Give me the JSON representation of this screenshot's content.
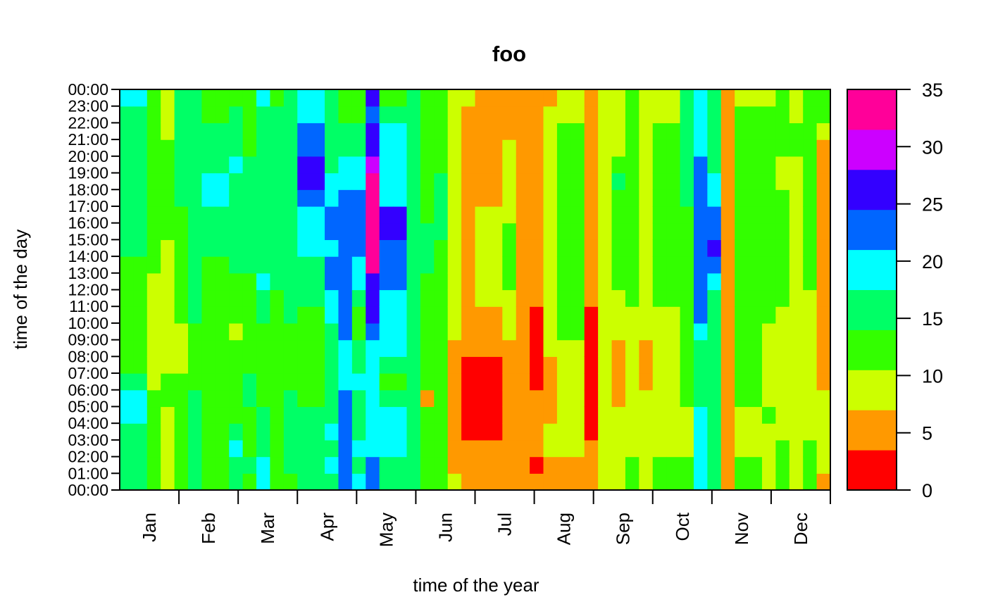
{
  "chart_data": {
    "type": "heatmap",
    "title": "foo",
    "xlabel": "time of the year",
    "ylabel": "time of the day",
    "x_tick_labels": [
      "Jan",
      "Feb",
      "Mar",
      "Apr",
      "May",
      "Jun",
      "Jul",
      "Aug",
      "Sep",
      "Oct",
      "Nov",
      "Dec"
    ],
    "y_tick_labels": [
      "00:00",
      "01:00",
      "02:00",
      "03:00",
      "04:00",
      "05:00",
      "06:00",
      "07:00",
      "08:00",
      "09:00",
      "10:00",
      "11:00",
      "12:00",
      "13:00",
      "14:00",
      "15:00",
      "16:00",
      "17:00",
      "18:00",
      "19:00",
      "20:00",
      "21:00",
      "22:00",
      "23:00",
      "00:00"
    ],
    "colorbar": {
      "breaks": [
        0,
        5,
        10,
        15,
        20,
        25,
        30,
        35
      ],
      "tick_labels": [
        "0",
        "5",
        "10",
        "15",
        "20",
        "25",
        "30",
        "35"
      ],
      "colors": [
        "#FF0000",
        "#FF9900",
        "#CCFF00",
        "#33FF00",
        "#00FF66",
        "#00FFFF",
        "#0066FF",
        "#3300FF",
        "#CC00FF",
        "#FF0099"
      ]
    },
    "column_keyframes": [
      {
        "i": 0,
        "levels": [
          4,
          4,
          4,
          4,
          5,
          5,
          4,
          3,
          3,
          3,
          3,
          3,
          3,
          3,
          4,
          4,
          4,
          4,
          4,
          4,
          4,
          4,
          4,
          5
        ]
      },
      {
        "i": 1,
        "levels": [
          3,
          3,
          3,
          3,
          3,
          3,
          2,
          2,
          2,
          2,
          2,
          2,
          2,
          3,
          3,
          3,
          3,
          3,
          3,
          3,
          3,
          3,
          3,
          3
        ]
      },
      {
        "i": 2,
        "levels": [
          2,
          2,
          2,
          2,
          2,
          3,
          3,
          2,
          2,
          2,
          2,
          2,
          2,
          2,
          2,
          3,
          3,
          3,
          3,
          3,
          3,
          2,
          2,
          2
        ]
      },
      {
        "i": 3,
        "levels": [
          3,
          3,
          3,
          3,
          3,
          3,
          3,
          2,
          2,
          2,
          3,
          3,
          3,
          3,
          3,
          3,
          3,
          4,
          4,
          4,
          4,
          4,
          4,
          4
        ]
      },
      {
        "i": 4,
        "levels": [
          4,
          4,
          4,
          4,
          4,
          4,
          3,
          3,
          3,
          3,
          4,
          4,
          4,
          4,
          4,
          4,
          4,
          4,
          4,
          4,
          4,
          4,
          4,
          4
        ]
      },
      {
        "i": 5,
        "levels": [
          3,
          3,
          3,
          3,
          3,
          3,
          3,
          3,
          3,
          3,
          3,
          3,
          3,
          3,
          4,
          4,
          4,
          5,
          5,
          4,
          4,
          4,
          3,
          3
        ]
      },
      {
        "i": 6,
        "levels": [
          4,
          4,
          5,
          4,
          3,
          3,
          3,
          3,
          3,
          2,
          3,
          3,
          3,
          4,
          4,
          4,
          4,
          4,
          4,
          5,
          4,
          4,
          4,
          3
        ]
      },
      {
        "i": 7,
        "levels": [
          3,
          4,
          3,
          3,
          3,
          4,
          4,
          3,
          3,
          3,
          3,
          3,
          3,
          4,
          4,
          4,
          4,
          4,
          4,
          4,
          3,
          3,
          3,
          3
        ]
      },
      {
        "i": 8,
        "levels": [
          5,
          5,
          4,
          4,
          4,
          3,
          3,
          3,
          3,
          3,
          4,
          4,
          5,
          4,
          4,
          4,
          4,
          4,
          4,
          4,
          4,
          4,
          4,
          5
        ]
      },
      {
        "i": 9,
        "levels": [
          3,
          3,
          3,
          3,
          3,
          3,
          3,
          3,
          3,
          3,
          3,
          3,
          4,
          4,
          4,
          4,
          4,
          4,
          4,
          4,
          4,
          4,
          4,
          3
        ]
      },
      {
        "i": 10,
        "levels": [
          3,
          4,
          4,
          4,
          4,
          4,
          3,
          3,
          3,
          3,
          4,
          4,
          4,
          4,
          4,
          4,
          4,
          4,
          4,
          4,
          4,
          4,
          4,
          4
        ]
      },
      {
        "i": 11,
        "levels": [
          4,
          4,
          4,
          4,
          4,
          3,
          3,
          3,
          3,
          3,
          3,
          4,
          4,
          4,
          5,
          5,
          5,
          6,
          7,
          7,
          6,
          6,
          5,
          5
        ]
      },
      {
        "i": 12,
        "levels": [
          4,
          5,
          4,
          5,
          4,
          4,
          4,
          4,
          4,
          4,
          5,
          5,
          6,
          6,
          5,
          6,
          6,
          5,
          5,
          4,
          4,
          4,
          4,
          4
        ]
      },
      {
        "i": 13,
        "levels": [
          6,
          6,
          6,
          6,
          6,
          6,
          5,
          5,
          5,
          6,
          6,
          6,
          6,
          6,
          6,
          6,
          6,
          6,
          5,
          5,
          4,
          4,
          3,
          3
        ]
      },
      {
        "i": 14,
        "levels": [
          5,
          4,
          5,
          4,
          4,
          4,
          5,
          4,
          4,
          3,
          3,
          4,
          5,
          5,
          6,
          6,
          6,
          6,
          5,
          5,
          4,
          4,
          3,
          3
        ]
      },
      {
        "i": 15,
        "levels": [
          6,
          6,
          5,
          5,
          5,
          5,
          5,
          5,
          5,
          6,
          7,
          7,
          7,
          9,
          9,
          9,
          9,
          9,
          9,
          8,
          7,
          7,
          6,
          7
        ]
      },
      {
        "i": 16,
        "levels": [
          4,
          4,
          5,
          5,
          5,
          4,
          3,
          4,
          5,
          5,
          5,
          5,
          6,
          6,
          6,
          7,
          7,
          5,
          5,
          5,
          5,
          5,
          4,
          3
        ]
      },
      {
        "i": 17,
        "levels": [
          4,
          4,
          4,
          4,
          4,
          4,
          4,
          4,
          4,
          4,
          4,
          4,
          4,
          4,
          4,
          4,
          4,
          4,
          4,
          4,
          4,
          4,
          4,
          4
        ]
      },
      {
        "i": 18,
        "levels": [
          3,
          3,
          3,
          3,
          3,
          1,
          3,
          3,
          3,
          3,
          3,
          3,
          3,
          4,
          4,
          4,
          3,
          3,
          3,
          3,
          3,
          3,
          3,
          3
        ]
      },
      {
        "i": 19,
        "levels": [
          3,
          3,
          3,
          3,
          3,
          3,
          3,
          3,
          3,
          3,
          3,
          3,
          3,
          3,
          3,
          4,
          4,
          4,
          4,
          3,
          3,
          3,
          3,
          3
        ]
      },
      {
        "i": 20,
        "levels": [
          2,
          1,
          1,
          1,
          1,
          1,
          1,
          1,
          1,
          2,
          2,
          2,
          2,
          2,
          2,
          2,
          2,
          2,
          2,
          2,
          2,
          2,
          2,
          2
        ]
      },
      {
        "i": 21,
        "levels": [
          1,
          1,
          1,
          0,
          0,
          0,
          0,
          0,
          1,
          1,
          1,
          1,
          1,
          1,
          1,
          1,
          1,
          1,
          1,
          1,
          1,
          1,
          1,
          2
        ]
      },
      {
        "i": 22,
        "levels": [
          1,
          1,
          1,
          0,
          0,
          0,
          0,
          0,
          1,
          1,
          1,
          2,
          2,
          2,
          2,
          2,
          2,
          1,
          1,
          1,
          1,
          1,
          1,
          1
        ]
      },
      {
        "i": 23,
        "levels": [
          1,
          1,
          1,
          1,
          1,
          1,
          1,
          1,
          1,
          2,
          2,
          2,
          3,
          3,
          3,
          3,
          2,
          2,
          2,
          2,
          2,
          1,
          1,
          1
        ]
      },
      {
        "i": 24,
        "levels": [
          1,
          1,
          1,
          1,
          1,
          1,
          1,
          1,
          1,
          1,
          1,
          1,
          1,
          1,
          1,
          1,
          1,
          1,
          1,
          1,
          1,
          1,
          1,
          1
        ]
      },
      {
        "i": 25,
        "levels": [
          1,
          0,
          1,
          1,
          1,
          1,
          0,
          0,
          0,
          0,
          0,
          1,
          1,
          1,
          1,
          1,
          1,
          1,
          1,
          1,
          1,
          1,
          1,
          1
        ]
      },
      {
        "i": 26,
        "levels": [
          1,
          1,
          2,
          2,
          1,
          1,
          1,
          1,
          2,
          2,
          2,
          2,
          2,
          2,
          2,
          2,
          2,
          2,
          2,
          2,
          2,
          2,
          2,
          1
        ]
      },
      {
        "i": 27,
        "levels": [
          1,
          1,
          2,
          2,
          2,
          2,
          2,
          2,
          2,
          3,
          3,
          3,
          3,
          3,
          3,
          3,
          3,
          3,
          3,
          3,
          3,
          3,
          2,
          2
        ]
      },
      {
        "i": 28,
        "levels": [
          1,
          1,
          1,
          0,
          0,
          0,
          0,
          0,
          0,
          0,
          0,
          1,
          1,
          1,
          1,
          1,
          1,
          1,
          1,
          1,
          1,
          1,
          1,
          1
        ]
      },
      {
        "i": 29,
        "levels": [
          2,
          2,
          2,
          2,
          2,
          2,
          2,
          2,
          2,
          2,
          2,
          2,
          2,
          2,
          2,
          2,
          2,
          2,
          2,
          2,
          2,
          2,
          2,
          2
        ]
      },
      {
        "i": 30,
        "levels": [
          2,
          2,
          2,
          2,
          2,
          1,
          1,
          1,
          1,
          2,
          2,
          2,
          3,
          3,
          3,
          3,
          3,
          3,
          4,
          3,
          2,
          2,
          2,
          2
        ]
      },
      {
        "i": 31,
        "levels": [
          3,
          3,
          2,
          2,
          2,
          2,
          2,
          2,
          2,
          2,
          2,
          3,
          3,
          3,
          3,
          3,
          3,
          3,
          3,
          3,
          3,
          3,
          3,
          3
        ]
      },
      {
        "i": 32,
        "levels": [
          2,
          2,
          2,
          2,
          2,
          2,
          1,
          1,
          1,
          2,
          2,
          2,
          2,
          2,
          2,
          2,
          2,
          2,
          2,
          2,
          2,
          2,
          2,
          2
        ]
      },
      {
        "i": 33,
        "levels": [
          3,
          3,
          2,
          2,
          2,
          2,
          2,
          2,
          2,
          2,
          2,
          3,
          3,
          3,
          3,
          3,
          3,
          3,
          3,
          3,
          3,
          3,
          2,
          2
        ]
      },
      {
        "i": 34,
        "levels": [
          3,
          3,
          2,
          2,
          2,
          3,
          3,
          3,
          3,
          3,
          3,
          3,
          3,
          3,
          3,
          3,
          3,
          4,
          4,
          4,
          4,
          4,
          4,
          4
        ]
      },
      {
        "i": 35,
        "levels": [
          5,
          5,
          5,
          5,
          5,
          4,
          4,
          4,
          4,
          5,
          6,
          6,
          6,
          6,
          6,
          6,
          6,
          6,
          6,
          6,
          5,
          5,
          5,
          5
        ]
      },
      {
        "i": 36,
        "levels": [
          4,
          4,
          4,
          4,
          4,
          4,
          4,
          4,
          4,
          4,
          4,
          4,
          5,
          6,
          7,
          6,
          6,
          5,
          5,
          4,
          4,
          4,
          4,
          4
        ]
      },
      {
        "i": 37,
        "levels": [
          1,
          1,
          1,
          1,
          1,
          1,
          1,
          1,
          1,
          1,
          1,
          1,
          1,
          1,
          1,
          1,
          1,
          1,
          1,
          1,
          1,
          1,
          1,
          1
        ]
      },
      {
        "i": 38,
        "levels": [
          3,
          3,
          2,
          2,
          2,
          3,
          3,
          3,
          3,
          3,
          3,
          3,
          3,
          3,
          3,
          3,
          3,
          3,
          3,
          3,
          3,
          3,
          3,
          2
        ]
      },
      {
        "i": 39,
        "levels": [
          2,
          2,
          2,
          2,
          3,
          2,
          2,
          2,
          2,
          2,
          3,
          3,
          3,
          3,
          3,
          3,
          3,
          3,
          3,
          3,
          3,
          3,
          3,
          2
        ]
      },
      {
        "i": 40,
        "levels": [
          3,
          3,
          3,
          2,
          2,
          2,
          2,
          2,
          2,
          2,
          2,
          3,
          3,
          3,
          3,
          3,
          3,
          3,
          2,
          2,
          3,
          3,
          3,
          3
        ]
      },
      {
        "i": 41,
        "levels": [
          2,
          2,
          2,
          2,
          2,
          2,
          2,
          2,
          2,
          2,
          2,
          2,
          2,
          2,
          2,
          2,
          2,
          2,
          2,
          2,
          3,
          3,
          2,
          2
        ]
      },
      {
        "i": 42,
        "levels": [
          3,
          3,
          3,
          2,
          2,
          2,
          2,
          2,
          2,
          2,
          2,
          2,
          3,
          3,
          3,
          3,
          3,
          3,
          3,
          3,
          3,
          3,
          3,
          3
        ]
      },
      {
        "i": 43,
        "levels": [
          1,
          2,
          2,
          2,
          2,
          2,
          1,
          1,
          1,
          1,
          1,
          1,
          1,
          1,
          1,
          1,
          1,
          1,
          1,
          1,
          1,
          2,
          3,
          3
        ]
      }
    ]
  }
}
